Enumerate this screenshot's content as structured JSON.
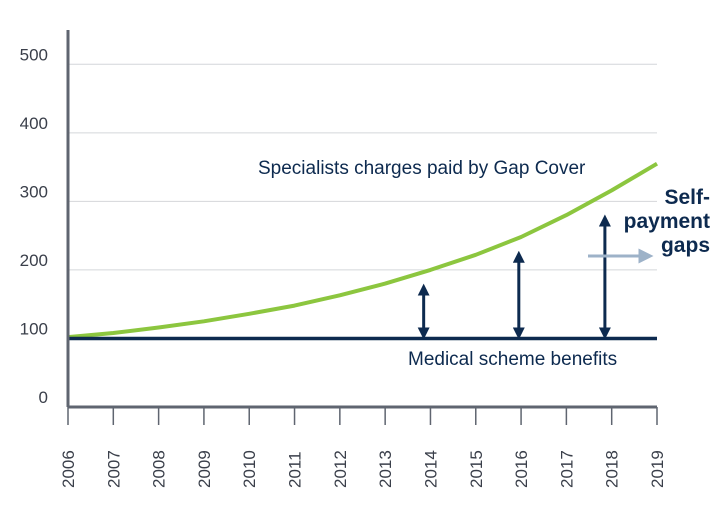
{
  "chart_data": {
    "type": "line",
    "x": [
      2006,
      2007,
      2008,
      2009,
      2010,
      2011,
      2012,
      2013,
      2014,
      2015,
      2016,
      2017,
      2018,
      2019
    ],
    "x_tick_labels": [
      "2006",
      "2007",
      "2008",
      "2009",
      "2010",
      "2011",
      "2012",
      "2013",
      "2014",
      "2015",
      "2016",
      "2017",
      "2018",
      "2019"
    ],
    "y_tick_labels": [
      "0",
      "100",
      "200",
      "300",
      "400",
      "500"
    ],
    "y_ticks": [
      0,
      100,
      200,
      300,
      400,
      500
    ],
    "ylim": [
      0,
      550
    ],
    "grid": true,
    "series": [
      {
        "name": "Specialists charges paid by Gap Cover",
        "color": "#8cc63f",
        "values": [
          102,
          108,
          116,
          125,
          136,
          148,
          163,
          180,
          200,
          222,
          248,
          280,
          316,
          355
        ]
      },
      {
        "name": "Medical scheme benefits",
        "color": "#0d2a4f",
        "values": [
          100,
          100,
          100,
          100,
          100,
          100,
          100,
          100,
          100,
          100,
          100,
          100,
          100,
          100
        ]
      }
    ],
    "gap_arrows": [
      {
        "x": 2013.85,
        "from": 100,
        "to": 177
      },
      {
        "x": 2015.95,
        "to": 225,
        "from": 100
      },
      {
        "x": 2017.85,
        "to": 278,
        "from": 100
      }
    ],
    "annotations": {
      "specialists": "Specialists charges paid by Gap Cover",
      "medical": "Medical scheme benefits",
      "self_payment_line1": "Self-",
      "self_payment_line2": "payment",
      "self_payment_line3": "gaps"
    },
    "colors": {
      "axis": "#5f6570",
      "grid": "#d4d6da",
      "arrow": "#0d2a4f",
      "callout_arrow": "#9db2c8"
    }
  }
}
